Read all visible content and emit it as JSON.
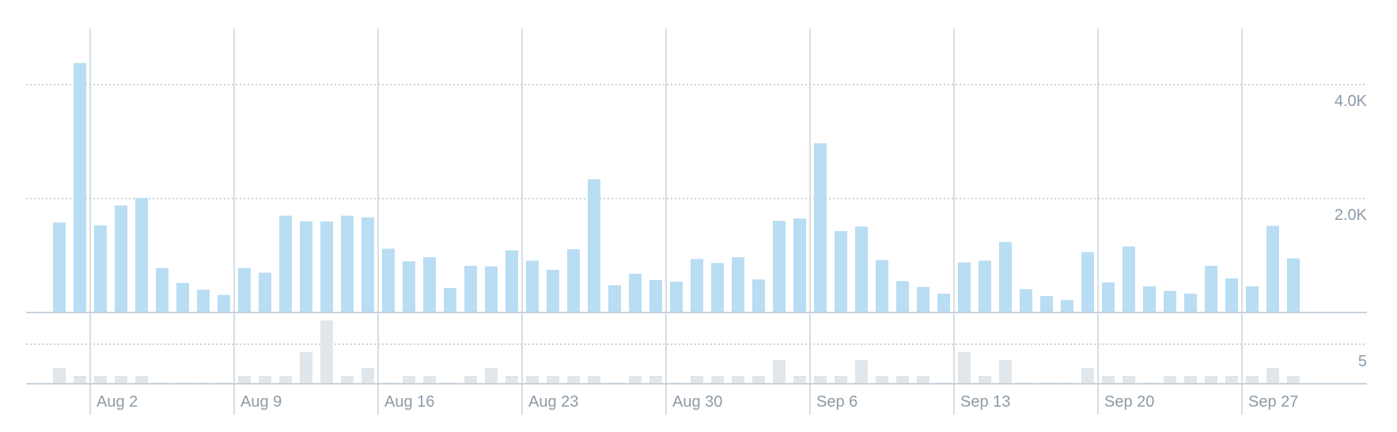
{
  "chart_data": [
    {
      "type": "bar",
      "name": "main",
      "title": "",
      "xlabel": "",
      "ylabel": "",
      "ylim": [
        0,
        5000
      ],
      "y_ticks": [
        {
          "value": 2000,
          "label": "2.0K"
        },
        {
          "value": 4000,
          "label": "4.0K"
        }
      ],
      "grid": true,
      "x_start": "2026-07-31",
      "x_week_labels": [
        "Aug 2",
        "Aug 9",
        "Aug 16",
        "Aug 23",
        "Aug 30",
        "Sep 6",
        "Sep 13",
        "Sep 20",
        "Sep 27"
      ],
      "values": [
        1580,
        4380,
        1530,
        1880,
        2010,
        780,
        520,
        400,
        310,
        780,
        700,
        1700,
        1600,
        1600,
        1700,
        1670,
        1120,
        900,
        970,
        430,
        820,
        810,
        1090,
        910,
        750,
        1110,
        2340,
        480,
        680,
        570,
        540,
        940,
        870,
        970,
        580,
        1610,
        1650,
        2970,
        1430,
        1510,
        920,
        550,
        450,
        330,
        880,
        910,
        1240,
        410,
        290,
        220,
        1060,
        530,
        1160,
        460,
        380,
        330,
        820,
        600,
        460,
        1520,
        950
      ],
      "colors": {
        "bars": "#b9ddf3",
        "axis": "#c8d2db",
        "grid": "#b7c2cc",
        "labels": "#8c9aa8"
      }
    },
    {
      "type": "bar",
      "name": "secondary",
      "title": "",
      "xlabel": "",
      "ylabel": "",
      "ylim": [
        0,
        9
      ],
      "y_ticks": [
        {
          "value": 5,
          "label": "5"
        }
      ],
      "grid": true,
      "values": [
        2,
        1,
        1,
        1,
        1,
        0,
        0,
        0,
        0,
        1,
        1,
        1,
        4,
        8,
        1,
        2,
        0,
        1,
        1,
        0,
        1,
        2,
        1,
        1,
        1,
        1,
        1,
        0,
        1,
        1,
        0,
        1,
        1,
        1,
        1,
        3,
        1,
        1,
        1,
        3,
        1,
        1,
        1,
        0,
        4,
        1,
        3,
        0,
        0,
        0,
        2,
        1,
        1,
        0,
        1,
        1,
        1,
        1,
        1,
        2,
        1
      ],
      "colors": {
        "bars": "#e1e6ea"
      }
    }
  ]
}
